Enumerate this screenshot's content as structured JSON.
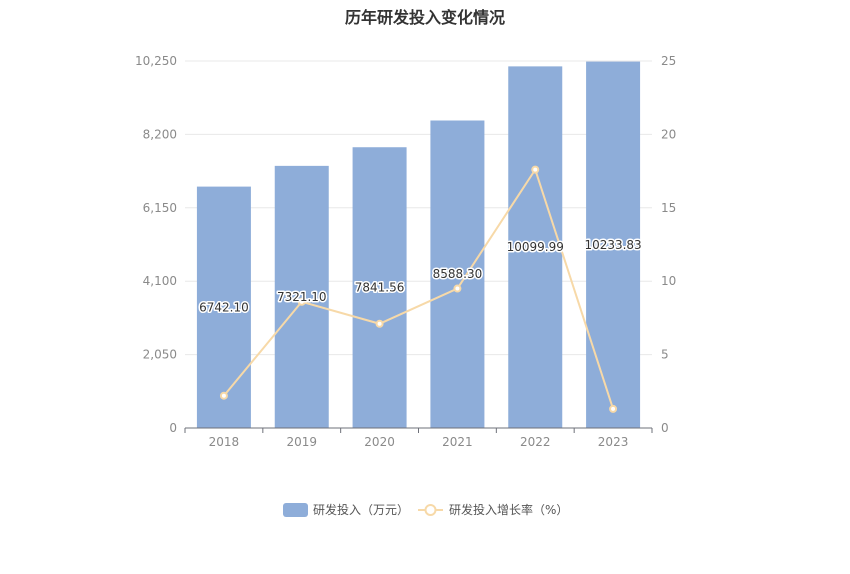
{
  "chart_data": {
    "type": "bar",
    "title": "历年研发投入变化情况",
    "categories": [
      "2018",
      "2019",
      "2020",
      "2021",
      "2022",
      "2023"
    ],
    "series": [
      {
        "name": "研发投入（万元）",
        "type": "bar",
        "axis": "left",
        "color": "#8eadd9",
        "values": [
          6742.1,
          7321.1,
          7841.56,
          8588.3,
          10099.99,
          10233.83
        ],
        "labels": [
          "6742.10",
          "7321.10",
          "7841.56",
          "8588.30",
          "10099.99",
          "10233.83"
        ]
      },
      {
        "name": "研发投入增长率（%）",
        "type": "line",
        "axis": "right",
        "color": "#f7d9a8",
        "values": [
          2.2,
          8.6,
          7.1,
          9.5,
          17.6,
          1.3
        ]
      }
    ],
    "left_axis": {
      "min": 0,
      "max": 10250,
      "ticks": [
        0,
        2050,
        4100,
        6150,
        8200,
        10250
      ],
      "tick_labels": [
        "0",
        "2,050",
        "4,100",
        "6,150",
        "8,200",
        "10,250"
      ]
    },
    "right_axis": {
      "min": 0,
      "max": 25,
      "ticks": [
        0,
        5,
        10,
        15,
        20,
        25
      ],
      "tick_labels": [
        "0",
        "5",
        "10",
        "15",
        "20",
        "25"
      ]
    },
    "grid": true,
    "legend_position": "bottom-center",
    "colors": {
      "axis": "#6e7079",
      "grid": "#e8e8e8"
    }
  }
}
